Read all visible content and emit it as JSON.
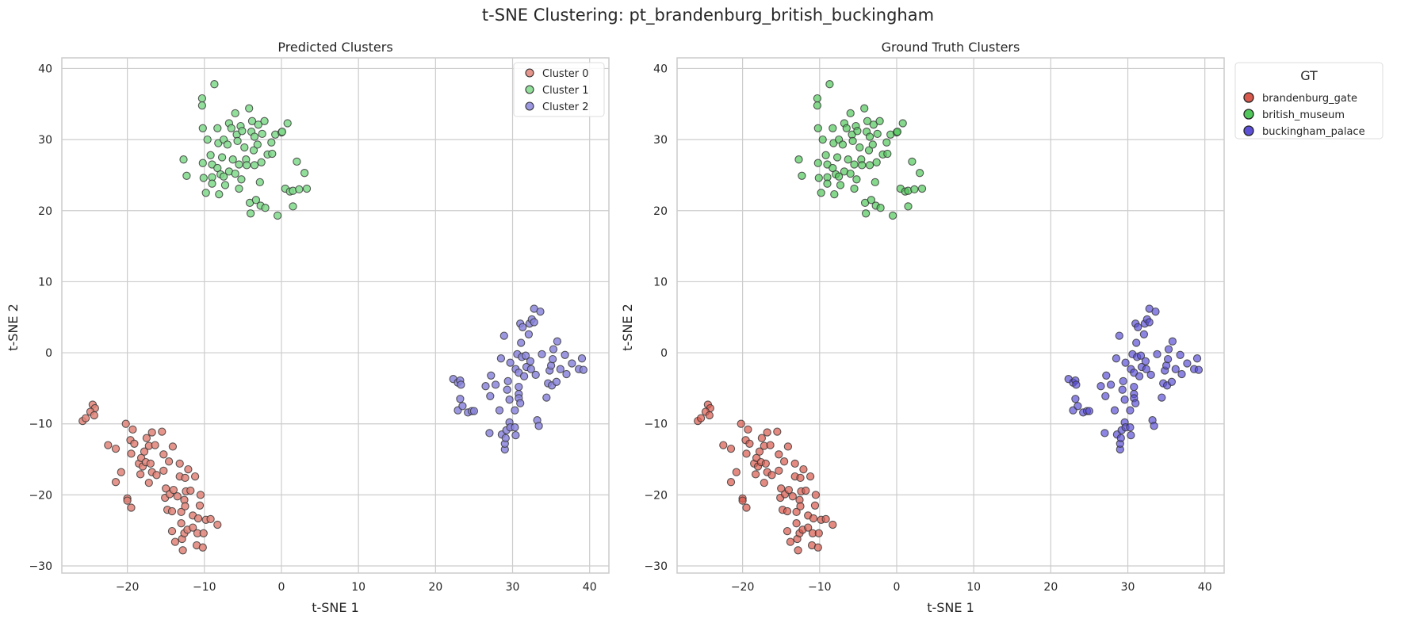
{
  "figure_title": "t-SNE Clustering: pt_brandenburg_british_buckingham",
  "colors": {
    "cluster_0": "#e08377",
    "cluster_1": "#7fd98a",
    "cluster_2": "#8b85dc",
    "brandenburg_gate": "#d9594c",
    "british_museum": "#51c75b",
    "buckingham_palace": "#5c51d6",
    "grid": "#cccccc",
    "axes_edge": "#cccccc"
  },
  "chart_data": [
    {
      "type": "scatter",
      "title": "Predicted Clusters",
      "xlabel": "t-SNE 1",
      "ylabel": "t-SNE 2",
      "xlim": [
        -28.5,
        42.5
      ],
      "ylim": [
        -31,
        41.5
      ],
      "xticks": [
        -20,
        -10,
        0,
        10,
        20,
        30,
        40
      ],
      "yticks": [
        -30,
        -20,
        -10,
        0,
        10,
        20,
        30,
        40
      ],
      "grid": true,
      "legend": {
        "title": "",
        "placement": "top-right",
        "entries": [
          "Cluster 0",
          "Cluster 1",
          "Cluster 2"
        ]
      },
      "series": [
        {
          "name": "Cluster 0",
          "color_key": "cluster_0",
          "points": [
            [
              -25.8,
              -9.6
            ],
            [
              -25.4,
              -9.2
            ],
            [
              -24.5,
              -7.3
            ],
            [
              -24.2,
              -7.8
            ],
            [
              -24.8,
              -8.3
            ],
            [
              -24.3,
              -8.8
            ],
            [
              -22.5,
              -13
            ],
            [
              -21.5,
              -13.5
            ],
            [
              -21.5,
              -18.2
            ],
            [
              -20.8,
              -16.8
            ],
            [
              -20.2,
              -10
            ],
            [
              -20,
              -20.5
            ],
            [
              -20,
              -20.8
            ],
            [
              -19.6,
              -12.3
            ],
            [
              -19.5,
              -14.2
            ],
            [
              -19.5,
              -21.8
            ],
            [
              -19.3,
              -10.8
            ],
            [
              -19.1,
              -12.8
            ],
            [
              -18.5,
              -15.6
            ],
            [
              -18.3,
              -17.1
            ],
            [
              -18.2,
              -14.8
            ],
            [
              -18,
              -16
            ],
            [
              -17.8,
              -13.9
            ],
            [
              -17.6,
              -15.4
            ],
            [
              -17.5,
              -12
            ],
            [
              -17.2,
              -18.3
            ],
            [
              -17.2,
              -13.1
            ],
            [
              -17,
              -15.6
            ],
            [
              -16.8,
              -16.8
            ],
            [
              -16.8,
              -11.2
            ],
            [
              -16.4,
              -13
            ],
            [
              -16.2,
              -17.2
            ],
            [
              -15.5,
              -11.1
            ],
            [
              -15.3,
              -14.3
            ],
            [
              -15.3,
              -16.6
            ],
            [
              -15.1,
              -20.4
            ],
            [
              -15,
              -19.1
            ],
            [
              -14.8,
              -22.1
            ],
            [
              -14.6,
              -15.3
            ],
            [
              -14.5,
              -19.9
            ],
            [
              -14.2,
              -22.3
            ],
            [
              -14.2,
              -25.1
            ],
            [
              -14.1,
              -13.2
            ],
            [
              -14,
              -19.3
            ],
            [
              -13.8,
              -26.6
            ],
            [
              -13.5,
              -20.2
            ],
            [
              -13.2,
              -17.4
            ],
            [
              -13.2,
              -15.6
            ],
            [
              -13,
              -22.4
            ],
            [
              -13,
              -24
            ],
            [
              -12.9,
              -26.2
            ],
            [
              -12.8,
              -27.8
            ],
            [
              -12.6,
              -25.4
            ],
            [
              -12.6,
              -20.7
            ],
            [
              -12.5,
              -17.6
            ],
            [
              -12.4,
              -19.5
            ],
            [
              -12.2,
              -24.9
            ],
            [
              -12.1,
              -16.4
            ],
            [
              -11.8,
              -19.4
            ],
            [
              -11.5,
              -22.9
            ],
            [
              -11.5,
              -24.6
            ],
            [
              -11.2,
              -17.4
            ],
            [
              -11,
              -27.1
            ],
            [
              -10.9,
              -25.4
            ],
            [
              -10.8,
              -23.3
            ],
            [
              -10.6,
              -21.5
            ],
            [
              -10.5,
              -20
            ],
            [
              -10.2,
              -27.4
            ],
            [
              -10.1,
              -25.4
            ],
            [
              -9.8,
              -23.5
            ],
            [
              -9.2,
              -23.4
            ],
            [
              -8.3,
              -24.2
            ],
            [
              -12.5,
              -21.6
            ]
          ]
        },
        {
          "name": "Cluster 1",
          "color_key": "cluster_1",
          "points": [
            [
              -12.7,
              27.2
            ],
            [
              -12.3,
              24.9
            ],
            [
              -10.3,
              35.8
            ],
            [
              -10.3,
              34.8
            ],
            [
              -10.2,
              31.6
            ],
            [
              -10.2,
              26.7
            ],
            [
              -10.1,
              24.6
            ],
            [
              -9.8,
              22.5
            ],
            [
              -9.6,
              30
            ],
            [
              -9.2,
              27.8
            ],
            [
              -9,
              26.5
            ],
            [
              -9,
              24.7
            ],
            [
              -9,
              23.8
            ],
            [
              -8.7,
              37.8
            ],
            [
              -8.3,
              31.6
            ],
            [
              -8.3,
              26
            ],
            [
              -8.2,
              29.5
            ],
            [
              -8.1,
              22.3
            ],
            [
              -7.9,
              25.1
            ],
            [
              -7.7,
              27.5
            ],
            [
              -7.5,
              30
            ],
            [
              -7.5,
              24.8
            ],
            [
              -7.3,
              23.6
            ],
            [
              -7,
              29.3
            ],
            [
              -6.8,
              32.3
            ],
            [
              -6.8,
              25.5
            ],
            [
              -6.5,
              31.6
            ],
            [
              -6.3,
              27.2
            ],
            [
              -6,
              33.7
            ],
            [
              -6,
              25.2
            ],
            [
              -5.8,
              30.7
            ],
            [
              -5.7,
              29.8
            ],
            [
              -5.5,
              23.1
            ],
            [
              -5.5,
              26.5
            ],
            [
              -5.3,
              31.9
            ],
            [
              -5.2,
              24.4
            ],
            [
              -5.1,
              31.2
            ],
            [
              -4.8,
              28.9
            ],
            [
              -4.6,
              27.2
            ],
            [
              -4.5,
              26.4
            ],
            [
              -4.2,
              34.4
            ],
            [
              -4.1,
              21.1
            ],
            [
              -4,
              19.6
            ],
            [
              -3.9,
              31.1
            ],
            [
              -3.8,
              32.6
            ],
            [
              -3.5,
              30.4
            ],
            [
              -3.6,
              28.5
            ],
            [
              -3.5,
              26.4
            ],
            [
              -3.3,
              21.5
            ],
            [
              -3.1,
              29.3
            ],
            [
              -3,
              32.1
            ],
            [
              -2.8,
              24
            ],
            [
              -2.7,
              20.7
            ],
            [
              -2.6,
              26.8
            ],
            [
              -2.5,
              30.8
            ],
            [
              -2.2,
              32.6
            ],
            [
              -2.1,
              20.4
            ],
            [
              -1.8,
              27.9
            ],
            [
              -1.3,
              29.6
            ],
            [
              -1.2,
              28
            ],
            [
              -0.8,
              30.7
            ],
            [
              -0.5,
              19.3
            ],
            [
              0,
              31
            ],
            [
              0.1,
              31.1
            ],
            [
              0.5,
              23.1
            ],
            [
              0.8,
              32.3
            ],
            [
              1.1,
              22.7
            ],
            [
              1.5,
              20.6
            ],
            [
              1.5,
              22.8
            ],
            [
              2,
              26.9
            ],
            [
              2.3,
              23
            ],
            [
              3,
              25.3
            ],
            [
              3.3,
              23.1
            ]
          ]
        },
        {
          "name": "Cluster 2",
          "color_key": "cluster_2",
          "points": [
            [
              22.3,
              -3.7
            ],
            [
              22.9,
              -4.2
            ],
            [
              22.9,
              -8.1
            ],
            [
              23.2,
              -6.5
            ],
            [
              23.2,
              -3.9
            ],
            [
              23.3,
              -4.5
            ],
            [
              23.5,
              -7.5
            ],
            [
              24.2,
              -8.4
            ],
            [
              24.7,
              -8.2
            ],
            [
              25,
              -8.2
            ],
            [
              26.5,
              -4.7
            ],
            [
              27,
              -11.3
            ],
            [
              27.1,
              -6.1
            ],
            [
              27.2,
              -3.2
            ],
            [
              27.8,
              -4.5
            ],
            [
              28.3,
              -8.1
            ],
            [
              28.5,
              -0.8
            ],
            [
              28.6,
              -11.5
            ],
            [
              28.9,
              2.4
            ],
            [
              29,
              -13.6
            ],
            [
              29,
              -12.8
            ],
            [
              29.1,
              -12
            ],
            [
              29.2,
              -10.9
            ],
            [
              29.3,
              -5.2
            ],
            [
              29.4,
              -4
            ],
            [
              29.6,
              -9.8
            ],
            [
              29.6,
              -6.6
            ],
            [
              29.7,
              -10.5
            ],
            [
              29.7,
              -1.4
            ],
            [
              30.3,
              -10.5
            ],
            [
              30.3,
              -8.1
            ],
            [
              30.4,
              -11.6
            ],
            [
              30.4,
              -2.3
            ],
            [
              30.6,
              -0.2
            ],
            [
              30.8,
              -5.8
            ],
            [
              30.8,
              -2.8
            ],
            [
              30.8,
              -4.8
            ],
            [
              30.8,
              -6.4
            ],
            [
              31,
              4.1
            ],
            [
              31,
              -7.1
            ],
            [
              31.1,
              1.4
            ],
            [
              31.2,
              -0.6
            ],
            [
              31.3,
              3.6
            ],
            [
              31.5,
              -3.3
            ],
            [
              31.7,
              -0.4
            ],
            [
              31.8,
              -2
            ],
            [
              32.1,
              2.6
            ],
            [
              32.2,
              4.1
            ],
            [
              32.3,
              -1.2
            ],
            [
              32.4,
              -2.3
            ],
            [
              32.5,
              4.7
            ],
            [
              32.8,
              6.2
            ],
            [
              32.8,
              4.3
            ],
            [
              33,
              -3.1
            ],
            [
              33.2,
              -9.5
            ],
            [
              33.4,
              -10.3
            ],
            [
              33.6,
              5.8
            ],
            [
              33.8,
              -0.2
            ],
            [
              34.4,
              -6.3
            ],
            [
              34.6,
              -4.3
            ],
            [
              34.8,
              -2.5
            ],
            [
              35,
              -1.8
            ],
            [
              35.1,
              -4.6
            ],
            [
              35.2,
              -0.9
            ],
            [
              35.3,
              0.5
            ],
            [
              35.7,
              -4.1
            ],
            [
              35.8,
              1.6
            ],
            [
              36.2,
              -2.3
            ],
            [
              36.8,
              -0.3
            ],
            [
              37,
              -3
            ],
            [
              37.7,
              -1.5
            ],
            [
              38.6,
              -2.3
            ],
            [
              39,
              -0.8
            ],
            [
              39.2,
              -2.4
            ]
          ]
        }
      ]
    },
    {
      "type": "scatter",
      "title": "Ground Truth Clusters",
      "xlabel": "t-SNE 1",
      "ylabel": "t-SNE 2",
      "xlim": [
        -28.5,
        42.5
      ],
      "ylim": [
        -31,
        41.5
      ],
      "xticks": [
        -20,
        -10,
        0,
        10,
        20,
        30,
        40
      ],
      "yticks": [
        -30,
        -20,
        -10,
        0,
        10,
        20,
        30,
        40
      ],
      "grid": true,
      "legend": {
        "title": "GT",
        "placement": "outside-right",
        "entries": [
          "brandenburg_gate",
          "british_museum",
          "buckingham_palace"
        ]
      },
      "series": [
        {
          "name": "brandenburg_gate",
          "color_key": "brandenburg_gate",
          "same_points_as": 0
        },
        {
          "name": "british_museum",
          "color_key": "british_museum",
          "same_points_as": 1
        },
        {
          "name": "buckingham_palace",
          "color_key": "buckingham_palace",
          "same_points_as": 2
        }
      ]
    }
  ]
}
